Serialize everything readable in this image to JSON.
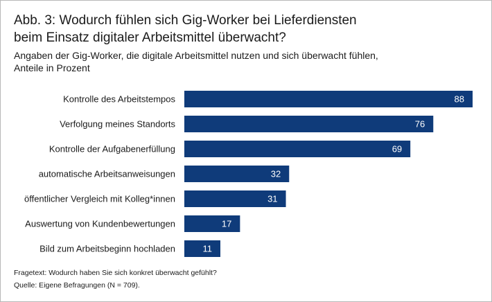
{
  "title_line1": "Abb. 3: Wodurch fühlen sich Gig-Worker bei Lieferdiensten",
  "title_line2": "beim Einsatz digitaler Arbeitsmittel überwacht?",
  "subtitle_line1": "Angaben der Gig-Worker, die digitale Arbeitsmittel nutzen und sich überwacht fühlen,",
  "subtitle_line2": "Anteile  in Prozent",
  "footnotes": {
    "question": "Fragetext: Wodurch haben Sie sich konkret überwacht gefühlt?",
    "source": "Quelle: Eigene Befragungen (N = 709)."
  },
  "colors": {
    "bar": "#0f3b7a",
    "value_text": "#ffffff"
  },
  "chart_data": {
    "type": "bar",
    "orientation": "horizontal",
    "categories": [
      "Kontrolle des Arbeitstempos",
      "Verfolgung meines Standorts",
      "Kontrolle der Aufgabenerfüllung",
      "automatische Arbeitsanweisungen",
      "öffentlicher Vergleich mit Kolleg*innen",
      "Auswertung von Kundenbewertungen",
      "Bild zum Arbeitsbeginn hochladen"
    ],
    "values": [
      88,
      76,
      69,
      32,
      31,
      17,
      11
    ],
    "xlim": [
      0,
      88
    ],
    "grid": false,
    "legend": "none"
  }
}
